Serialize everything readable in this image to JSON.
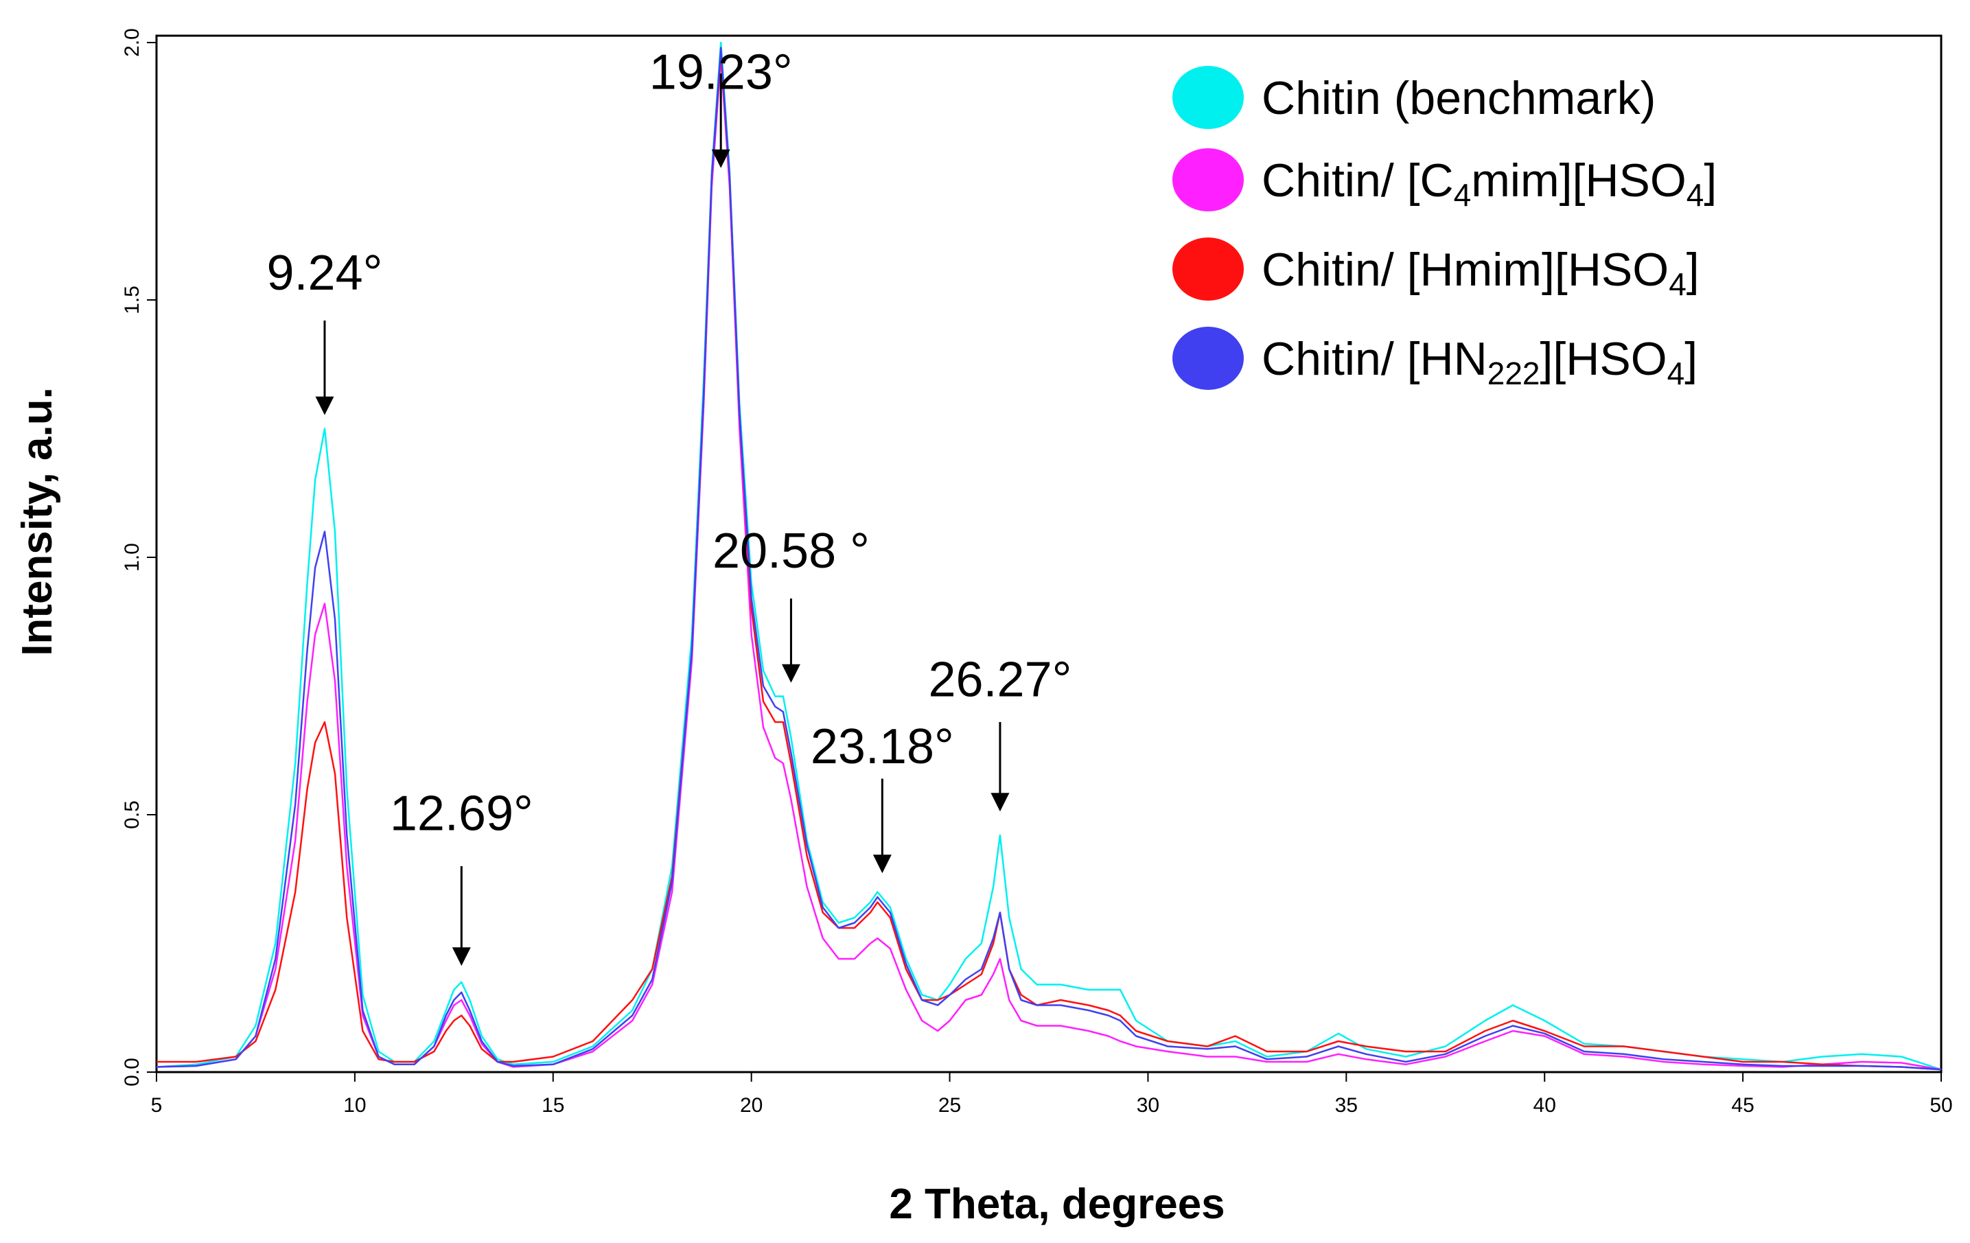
{
  "chart_data": {
    "type": "line",
    "title": "",
    "xlabel": "2 Theta, degrees",
    "ylabel": "Intensity, a.u.",
    "xlim": [
      5,
      50
    ],
    "ylim": [
      0,
      2.0
    ],
    "xticks": [
      "5",
      "10",
      "15",
      "20",
      "25",
      "30",
      "35",
      "40",
      "45",
      "50"
    ],
    "yticks": [
      "0.0",
      "0.5",
      "1.0",
      "1.5",
      "2.0"
    ],
    "legend_position": "top-right",
    "series": [
      {
        "name": "Chitin (benchmark)",
        "color": "#00f0f0",
        "legend_main": "Chitin (benchmark)",
        "legend_sub1": "",
        "legend_mid": "",
        "legend_sub2": "",
        "legend_tail": "",
        "x": [
          5,
          6,
          7,
          7.5,
          8,
          8.5,
          8.8,
          9.0,
          9.24,
          9.5,
          9.8,
          10.2,
          10.6,
          11,
          11.5,
          12,
          12.3,
          12.5,
          12.69,
          12.9,
          13.2,
          13.6,
          14,
          15,
          16,
          17,
          17.5,
          18,
          18.5,
          18.8,
          19.0,
          19.23,
          19.45,
          19.7,
          20.0,
          20.3,
          20.6,
          20.8,
          21.0,
          21.4,
          21.8,
          22.2,
          22.6,
          23.0,
          23.18,
          23.5,
          23.9,
          24.3,
          24.7,
          25.0,
          25.4,
          25.8,
          26.1,
          26.27,
          26.5,
          26.8,
          27.2,
          27.8,
          28.5,
          29.0,
          29.3,
          29.7,
          30.5,
          31.5,
          32.2,
          33,
          34,
          34.8,
          35.5,
          36.5,
          37.5,
          38.5,
          39.2,
          40,
          41,
          42,
          43,
          44,
          45,
          46,
          47,
          48,
          49,
          50
        ],
        "y": [
          0.01,
          0.015,
          0.03,
          0.09,
          0.25,
          0.6,
          0.95,
          1.15,
          1.25,
          1.05,
          0.55,
          0.15,
          0.04,
          0.02,
          0.02,
          0.06,
          0.12,
          0.16,
          0.175,
          0.14,
          0.07,
          0.025,
          0.015,
          0.02,
          0.05,
          0.12,
          0.2,
          0.4,
          0.85,
          1.35,
          1.75,
          2.0,
          1.75,
          1.3,
          0.95,
          0.78,
          0.73,
          0.73,
          0.65,
          0.45,
          0.33,
          0.29,
          0.3,
          0.33,
          0.35,
          0.32,
          0.22,
          0.15,
          0.14,
          0.17,
          0.22,
          0.25,
          0.36,
          0.46,
          0.3,
          0.2,
          0.17,
          0.17,
          0.16,
          0.16,
          0.16,
          0.1,
          0.06,
          0.05,
          0.06,
          0.03,
          0.04,
          0.075,
          0.045,
          0.03,
          0.05,
          0.1,
          0.13,
          0.1,
          0.055,
          0.05,
          0.04,
          0.03,
          0.025,
          0.02,
          0.03,
          0.035,
          0.03,
          0.005
        ]
      },
      {
        "name": "Chitin/ [C4mim][HSO4]",
        "color": "#ff20ff",
        "legend_main": "Chitin/ [C",
        "legend_sub1": "4",
        "legend_mid": "mim][HSO",
        "legend_sub2": "4",
        "legend_tail": "]",
        "x": [
          5,
          6,
          7,
          7.5,
          8,
          8.5,
          8.8,
          9.0,
          9.24,
          9.5,
          9.8,
          10.2,
          10.6,
          11,
          11.5,
          12,
          12.3,
          12.5,
          12.69,
          12.9,
          13.2,
          13.6,
          14,
          15,
          16,
          17,
          17.5,
          18,
          18.5,
          18.8,
          19.0,
          19.23,
          19.45,
          19.7,
          20.0,
          20.3,
          20.6,
          20.8,
          21.0,
          21.4,
          21.8,
          22.2,
          22.6,
          23.0,
          23.18,
          23.5,
          23.9,
          24.3,
          24.7,
          25.0,
          25.4,
          25.8,
          26.1,
          26.27,
          26.5,
          26.8,
          27.2,
          27.8,
          28.5,
          29.0,
          29.3,
          29.7,
          30.5,
          31.5,
          32.2,
          33,
          34,
          34.8,
          35.5,
          36.5,
          37.5,
          38.5,
          39.2,
          40,
          41,
          42,
          43,
          44,
          45,
          46,
          47,
          48,
          49,
          50
        ],
        "y": [
          0.01,
          0.012,
          0.025,
          0.07,
          0.2,
          0.45,
          0.72,
          0.85,
          0.91,
          0.76,
          0.4,
          0.11,
          0.03,
          0.015,
          0.015,
          0.05,
          0.1,
          0.13,
          0.14,
          0.11,
          0.055,
          0.02,
          0.01,
          0.015,
          0.04,
          0.1,
          0.17,
          0.35,
          0.8,
          1.3,
          1.72,
          1.97,
          1.72,
          1.25,
          0.85,
          0.67,
          0.61,
          0.6,
          0.53,
          0.36,
          0.26,
          0.22,
          0.22,
          0.25,
          0.26,
          0.24,
          0.16,
          0.1,
          0.08,
          0.1,
          0.14,
          0.15,
          0.19,
          0.22,
          0.14,
          0.1,
          0.09,
          0.09,
          0.08,
          0.07,
          0.06,
          0.05,
          0.04,
          0.03,
          0.03,
          0.02,
          0.02,
          0.035,
          0.025,
          0.015,
          0.03,
          0.06,
          0.08,
          0.07,
          0.035,
          0.03,
          0.02,
          0.015,
          0.012,
          0.01,
          0.015,
          0.02,
          0.018,
          0.005
        ]
      },
      {
        "name": "Chitin/ [Hmim][HSO4]",
        "color": "#ff1010",
        "legend_main": "Chitin/ [Hmim][HSO",
        "legend_sub1": "4",
        "legend_mid": "]",
        "legend_sub2": "",
        "legend_tail": "",
        "x": [
          5,
          6,
          7,
          7.5,
          8,
          8.5,
          8.8,
          9.0,
          9.24,
          9.5,
          9.8,
          10.2,
          10.6,
          11,
          11.5,
          12,
          12.3,
          12.5,
          12.69,
          12.9,
          13.2,
          13.6,
          14,
          15,
          16,
          17,
          17.5,
          18,
          18.5,
          18.8,
          19.0,
          19.23,
          19.45,
          19.7,
          20.0,
          20.3,
          20.6,
          20.8,
          21.0,
          21.4,
          21.8,
          22.2,
          22.6,
          23.0,
          23.18,
          23.5,
          23.9,
          24.3,
          24.7,
          25.0,
          25.4,
          25.8,
          26.1,
          26.27,
          26.5,
          26.8,
          27.2,
          27.8,
          28.5,
          29.0,
          29.3,
          29.7,
          30.5,
          31.5,
          32.2,
          33,
          34,
          34.8,
          35.5,
          36.5,
          37.5,
          38.5,
          39.2,
          40,
          41,
          42,
          43,
          44,
          45,
          46,
          47,
          48,
          49,
          50
        ],
        "y": [
          0.02,
          0.02,
          0.03,
          0.06,
          0.16,
          0.35,
          0.55,
          0.64,
          0.68,
          0.58,
          0.3,
          0.08,
          0.025,
          0.02,
          0.02,
          0.04,
          0.08,
          0.1,
          0.11,
          0.09,
          0.045,
          0.02,
          0.02,
          0.03,
          0.06,
          0.14,
          0.2,
          0.38,
          0.82,
          1.32,
          1.74,
          1.98,
          1.74,
          1.28,
          0.9,
          0.72,
          0.68,
          0.68,
          0.6,
          0.42,
          0.31,
          0.28,
          0.28,
          0.31,
          0.33,
          0.3,
          0.2,
          0.14,
          0.14,
          0.15,
          0.17,
          0.19,
          0.25,
          0.31,
          0.2,
          0.15,
          0.13,
          0.14,
          0.13,
          0.12,
          0.11,
          0.08,
          0.06,
          0.05,
          0.07,
          0.04,
          0.04,
          0.06,
          0.05,
          0.04,
          0.04,
          0.08,
          0.1,
          0.08,
          0.05,
          0.05,
          0.04,
          0.03,
          0.02,
          0.02,
          0.015,
          0.012,
          0.01,
          0.005
        ]
      },
      {
        "name": "Chitin/ [HN222][HSO4]",
        "color": "#4040f0",
        "legend_main": "Chitin/ [HN",
        "legend_sub1": "222",
        "legend_mid": "][HSO",
        "legend_sub2": "4",
        "legend_tail": "]",
        "x": [
          5,
          6,
          7,
          7.5,
          8,
          8.5,
          8.8,
          9.0,
          9.24,
          9.5,
          9.8,
          10.2,
          10.6,
          11,
          11.5,
          12,
          12.3,
          12.5,
          12.69,
          12.9,
          13.2,
          13.6,
          14,
          15,
          16,
          17,
          17.5,
          18,
          18.5,
          18.8,
          19.0,
          19.23,
          19.45,
          19.7,
          20.0,
          20.3,
          20.6,
          20.8,
          21.0,
          21.4,
          21.8,
          22.2,
          22.6,
          23.0,
          23.18,
          23.5,
          23.9,
          24.3,
          24.7,
          25.0,
          25.4,
          25.8,
          26.1,
          26.27,
          26.5,
          26.8,
          27.2,
          27.8,
          28.5,
          29.0,
          29.3,
          29.7,
          30.5,
          31.5,
          32.2,
          33,
          34,
          34.8,
          35.5,
          36.5,
          37.5,
          38.5,
          39.2,
          40,
          41,
          42,
          43,
          44,
          45,
          46,
          47,
          48,
          49,
          50
        ],
        "y": [
          0.01,
          0.012,
          0.025,
          0.07,
          0.22,
          0.52,
          0.82,
          0.98,
          1.05,
          0.88,
          0.46,
          0.12,
          0.03,
          0.015,
          0.015,
          0.05,
          0.11,
          0.14,
          0.155,
          0.12,
          0.06,
          0.02,
          0.012,
          0.015,
          0.045,
          0.11,
          0.18,
          0.37,
          0.82,
          1.32,
          1.74,
          1.99,
          1.74,
          1.28,
          0.92,
          0.75,
          0.71,
          0.7,
          0.62,
          0.44,
          0.32,
          0.28,
          0.29,
          0.32,
          0.34,
          0.31,
          0.21,
          0.14,
          0.13,
          0.15,
          0.18,
          0.2,
          0.26,
          0.31,
          0.2,
          0.14,
          0.13,
          0.13,
          0.12,
          0.11,
          0.1,
          0.07,
          0.05,
          0.045,
          0.05,
          0.025,
          0.03,
          0.05,
          0.035,
          0.02,
          0.035,
          0.07,
          0.09,
          0.075,
          0.04,
          0.035,
          0.025,
          0.02,
          0.015,
          0.012,
          0.012,
          0.012,
          0.01,
          0.005
        ]
      }
    ],
    "annotations": [
      {
        "label": "9.24°",
        "x": 9.24,
        "arrow_from_y": 1.46,
        "arrow_to_y": 1.28,
        "text_y": 1.52
      },
      {
        "label": "12.69°",
        "x": 12.69,
        "arrow_from_y": 0.4,
        "arrow_to_y": 0.21,
        "text_y": 0.47
      },
      {
        "label": "19.23°",
        "x": 19.23,
        "arrow_from_y": 1.94,
        "arrow_to_y": 1.76,
        "text_y": 1.91
      },
      {
        "label": "20.58 °",
        "x": 21.0,
        "arrow_from_y": 0.92,
        "arrow_to_y": 0.76,
        "text_y": 0.98
      },
      {
        "label": "23.18°",
        "x": 23.3,
        "arrow_from_y": 0.57,
        "arrow_to_y": 0.39,
        "text_y": 0.6
      },
      {
        "label": "26.27°",
        "x": 26.27,
        "arrow_from_y": 0.68,
        "arrow_to_y": 0.51,
        "text_y": 0.73
      }
    ]
  }
}
